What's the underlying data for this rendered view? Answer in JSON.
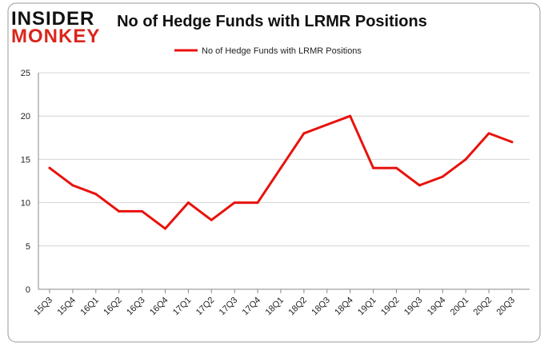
{
  "logo": {
    "line1": "INSIDER",
    "line2": "MONKEY"
  },
  "chart_data": {
    "type": "line",
    "title": "No of Hedge Funds with LRMR Positions",
    "xlabel": "",
    "ylabel": "",
    "categories": [
      "15Q3",
      "15Q4",
      "16Q1",
      "16Q2",
      "16Q3",
      "16Q4",
      "17Q1",
      "17Q2",
      "17Q3",
      "17Q4",
      "18Q1",
      "18Q2",
      "18Q3",
      "18Q4",
      "19Q1",
      "19Q2",
      "19Q3",
      "19Q4",
      "20Q1",
      "20Q2",
      "20Q3"
    ],
    "series": [
      {
        "name": "No of Hedge Funds with LRMR Positions",
        "color": "#e8120c",
        "values": [
          14,
          12,
          11,
          9,
          9,
          7,
          10,
          8,
          10,
          10,
          14,
          18,
          19,
          20,
          14,
          14,
          12,
          13,
          15,
          18,
          17
        ]
      }
    ],
    "ylim": [
      0,
      25
    ],
    "yticks": [
      0,
      5,
      10,
      15,
      20,
      25
    ],
    "grid": true,
    "legend_position": "top-center"
  }
}
